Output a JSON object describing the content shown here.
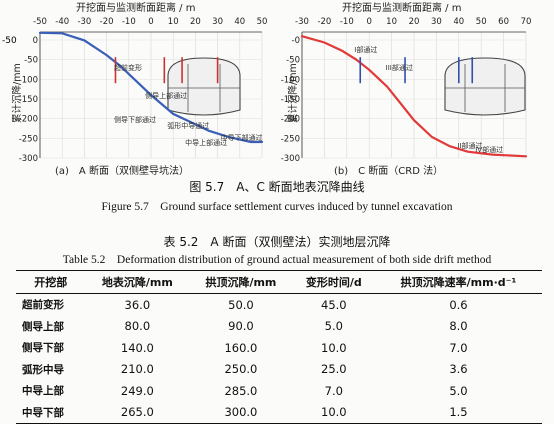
{
  "chart_data": [
    {
      "type": "line",
      "panel_label": "(a)　A 断面（双侧壁导坑法）",
      "top_axis_label": "开挖面与监测断面距离 / m",
      "x_ticks": [
        "-50",
        "-40",
        "-30",
        "-20",
        "-10",
        "0",
        "10",
        "20",
        "30",
        "40",
        "50"
      ],
      "y_ticks": [
        "0",
        "-50",
        "-100",
        "-150",
        "-200",
        "-250",
        "-300"
      ],
      "ylabel": "累计沉降/mm",
      "xlim": [
        -50,
        50
      ],
      "ylim": [
        -300,
        0
      ],
      "series": [
        {
          "color": "#3a5fb8",
          "points": [
            [
              -50,
              -2
            ],
            [
              -40,
              -3
            ],
            [
              -30,
              -20
            ],
            [
              -20,
              -55
            ],
            [
              -14,
              -80
            ],
            [
              -8,
              -110
            ],
            [
              0,
              -150
            ],
            [
              10,
              -195
            ],
            [
              18,
              -215
            ],
            [
              26,
              -235
            ],
            [
              35,
              -250
            ],
            [
              45,
              -262
            ],
            [
              50,
              -262
            ]
          ]
        }
      ],
      "annotations": [
        {
          "text": "超前变形",
          "x": -18
        },
        {
          "text": "侧导上部通过",
          "x": -4
        },
        {
          "text": "侧导下部通过",
          "x": -18
        },
        {
          "text": "弧形中导通过",
          "x": 6
        },
        {
          "text": "中导上部通过",
          "x": 14
        },
        {
          "text": "中导下部通过",
          "x": 30
        }
      ],
      "markers_x": [
        -16,
        6,
        14,
        30
      ]
    },
    {
      "type": "line",
      "panel_label": "(b)　C 断面（CRD 法）",
      "top_axis_label": "开挖面与监测断面距离 / m",
      "x_ticks": [
        "-30",
        "-20",
        "-10",
        "0",
        "10",
        "20",
        "30",
        "40",
        "50",
        "60",
        "70"
      ],
      "y_ticks": [
        "-0",
        "-50",
        "-100",
        "-150",
        "-200",
        "-250",
        "-300"
      ],
      "ylabel": "累计沉降/mm",
      "xlim": [
        -30,
        70
      ],
      "ylim": [
        -300,
        0
      ],
      "series": [
        {
          "color": "#e03a3a",
          "points": [
            [
              -30,
              -10
            ],
            [
              -20,
              -25
            ],
            [
              -12,
              -45
            ],
            [
              -6,
              -65
            ],
            [
              0,
              -90
            ],
            [
              8,
              -130
            ],
            [
              14,
              -170
            ],
            [
              20,
              -210
            ],
            [
              28,
              -250
            ],
            [
              36,
              -272
            ],
            [
              44,
              -285
            ],
            [
              55,
              -292
            ],
            [
              70,
              -296
            ]
          ]
        }
      ],
      "annotations": [
        {
          "text": "I部通过",
          "x": -8
        },
        {
          "text": "III部通过",
          "x": 6
        },
        {
          "text": "II部通过",
          "x": 38
        },
        {
          "text": "IV部通过",
          "x": 46
        }
      ],
      "markers_x": [
        -4,
        16,
        40,
        46
      ]
    }
  ],
  "figure_caption_cn": "图 5.7　A、C 断面地表沉降曲线",
  "figure_caption_en": "Figure 5.7　Ground surface settlement curves induced by tunnel excavation",
  "table": {
    "title_cn": "表 5.2　A 断面（双侧壁法）实测地层沉降",
    "title_en": "Table 5.2　Deformation distribution of ground actual measurement of both side drift method",
    "headers": [
      "开挖部",
      "地表沉降/mm",
      "拱顶沉降/mm",
      "变形时间/d",
      "拱顶沉降速率/mm·d⁻¹"
    ],
    "rows": [
      [
        "超前变形",
        "36.0",
        "50.0",
        "45.0",
        "0.6"
      ],
      [
        "侧导上部",
        "80.0",
        "90.0",
        "5.0",
        "8.0"
      ],
      [
        "侧导下部",
        "140.0",
        "160.0",
        "10.0",
        "7.0"
      ],
      [
        "弧形中导",
        "210.0",
        "250.0",
        "25.0",
        "3.6"
      ],
      [
        "中导上部",
        "249.0",
        "285.0",
        "7.0",
        "5.0"
      ],
      [
        "中导下部",
        "265.0",
        "300.0",
        "10.0",
        "1.5"
      ]
    ]
  },
  "left_axis_stub": "-50"
}
